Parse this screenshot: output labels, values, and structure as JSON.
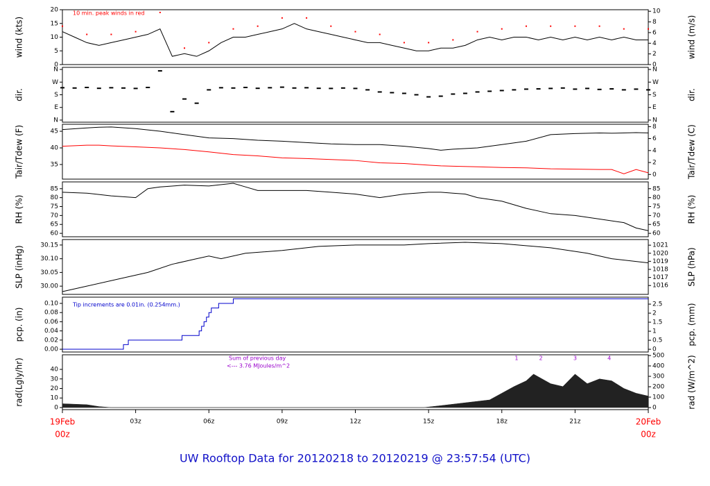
{
  "title": "UW Rooftop Data for 20120218  to  20120219 @ 23:57:54  (UTC)",
  "chart_data": [
    {
      "type": "line",
      "ylabel": "wind (kts)",
      "y2label": "wind (m/s)",
      "annotation": "10 min. peak winds in red",
      "xlim": [
        0,
        24
      ],
      "ylim": [
        0,
        20
      ],
      "yticks": [
        0,
        5,
        10,
        15,
        20
      ],
      "y2lim": [
        0,
        10.29
      ],
      "y2ticks": [
        0,
        2,
        4,
        6,
        8,
        10
      ],
      "x": [
        0,
        0.5,
        1,
        1.5,
        2,
        2.5,
        3,
        3.5,
        4,
        4.5,
        5,
        5.5,
        6,
        6.5,
        7,
        7.5,
        8,
        8.5,
        9,
        9.5,
        10,
        10.5,
        11,
        11.5,
        12,
        12.5,
        13,
        13.5,
        14,
        14.5,
        15,
        15.5,
        16,
        16.5,
        17,
        17.5,
        18,
        18.5,
        19,
        19.5,
        20,
        20.5,
        21,
        21.5,
        22,
        22.5,
        23,
        23.5,
        24
      ],
      "series": [
        {
          "color": "#000000",
          "values": [
            12,
            10,
            8,
            7,
            8,
            9,
            10,
            11,
            13,
            3,
            4,
            3,
            5,
            8,
            10,
            10,
            11,
            12,
            13,
            15,
            13,
            12,
            11,
            10,
            9,
            8,
            8,
            7,
            6,
            5,
            5,
            6,
            6,
            7,
            9,
            10,
            9,
            10,
            10,
            9,
            10,
            9,
            10,
            9,
            10,
            9,
            10,
            9,
            9
          ]
        },
        {
          "color": "#ff0000",
          "marker": "dot",
          "x": [
            0,
            1,
            2,
            3,
            4,
            5,
            6,
            7,
            8,
            9,
            10,
            11,
            12,
            13,
            14,
            15,
            16,
            17,
            18,
            19,
            20,
            21,
            22,
            23,
            24
          ],
          "values": [
            14,
            11,
            11,
            12,
            19,
            6,
            8,
            13,
            14,
            17,
            17,
            14,
            12,
            11,
            8,
            8,
            9,
            12,
            13,
            14,
            14,
            14,
            14,
            13,
            13
          ]
        }
      ]
    },
    {
      "type": "scatter",
      "ylabel": "dir.",
      "y2label": "dir.",
      "xlim": [
        0,
        24
      ],
      "ylim": [
        -15,
        375
      ],
      "yticks": [
        {
          "value": 0,
          "label": "N"
        },
        {
          "value": 90,
          "label": "E"
        },
        {
          "value": 180,
          "label": "S"
        },
        {
          "value": 270,
          "label": "W"
        },
        {
          "value": 360,
          "label": "N"
        }
      ],
      "x": [
        0,
        0.5,
        1,
        1.5,
        2,
        2.5,
        3,
        3.5,
        4,
        4.5,
        5,
        5.5,
        6,
        6.5,
        7,
        7.5,
        8,
        8.5,
        9,
        9.5,
        10,
        10.5,
        11,
        11.5,
        12,
        12.5,
        13,
        13.5,
        14,
        14.5,
        15,
        15.5,
        16,
        16.5,
        17,
        17.5,
        18,
        18.5,
        19,
        19.5,
        20,
        20.5,
        21,
        21.5,
        22,
        22.5,
        23,
        23.5,
        24
      ],
      "series": [
        {
          "color": "#000000",
          "values": [
            230,
            228,
            232,
            226,
            230,
            228,
            225,
            232,
            350,
            60,
            150,
            120,
            215,
            230,
            228,
            232,
            226,
            230,
            234,
            228,
            230,
            226,
            225,
            228,
            225,
            215,
            200,
            195,
            190,
            180,
            165,
            170,
            185,
            190,
            200,
            205,
            210,
            215,
            220,
            222,
            225,
            228,
            220,
            225,
            218,
            222,
            215,
            220,
            215
          ]
        }
      ]
    },
    {
      "type": "line",
      "ylabel": "Tair/Tdew (F)",
      "y2label": "Tair/Tdew (C)",
      "xlim": [
        0,
        24
      ],
      "ylim": [
        30.6,
        47.1
      ],
      "yticks": [
        35,
        40,
        45
      ],
      "y2lim": [
        -0.78,
        8.39
      ],
      "y2ticks": [
        0,
        2,
        4,
        6,
        8
      ],
      "x": [
        0,
        1,
        1.5,
        2,
        3,
        4,
        5,
        6,
        7,
        8,
        9,
        10,
        11,
        12,
        13,
        14,
        15,
        15.5,
        16,
        17,
        18,
        19,
        20,
        21,
        22,
        22.5,
        23,
        23.5,
        24
      ],
      "series": [
        {
          "color": "#000000",
          "values": [
            45.5,
            46,
            46.2,
            46.3,
            45.8,
            45,
            44,
            43,
            42.8,
            42.3,
            42,
            41.6,
            41.2,
            41,
            41,
            40.5,
            39.8,
            39.3,
            39.6,
            40,
            41,
            42,
            44,
            44.3,
            44.5,
            44.4,
            44.5,
            44.6,
            44.5
          ]
        },
        {
          "color": "#ff0000",
          "values": [
            40.5,
            40.8,
            40.8,
            40.6,
            40.3,
            40,
            39.5,
            38.8,
            38,
            37.6,
            37,
            36.8,
            36.5,
            36.2,
            35.5,
            35.3,
            34.8,
            34.6,
            34.5,
            34.3,
            34.1,
            34,
            33.7,
            33.6,
            33.5,
            33.5,
            32.2,
            33.5,
            32.5
          ]
        }
      ]
    },
    {
      "type": "line",
      "ylabel": "RH (%)",
      "y2label": "RH (%)",
      "xlim": [
        0,
        24
      ],
      "ylim": [
        58.1,
        88.8
      ],
      "yticks": [
        60,
        65,
        70,
        75,
        80,
        85
      ],
      "x": [
        0,
        1,
        2,
        3,
        3.5,
        4,
        5,
        6,
        7,
        7.5,
        8,
        9,
        10,
        11,
        12,
        13,
        14,
        15,
        15.5,
        16,
        16.5,
        17,
        18,
        19,
        20,
        21,
        22,
        23,
        23.5,
        24
      ],
      "series": [
        {
          "color": "#000000",
          "values": [
            83,
            82.5,
            81,
            80,
            85,
            86,
            87,
            86.5,
            88,
            86,
            84,
            84,
            84,
            83,
            82,
            80,
            82,
            83,
            83,
            82.5,
            82,
            80,
            78,
            74,
            71,
            70,
            68,
            66,
            63,
            61.5
          ]
        }
      ]
    },
    {
      "type": "line",
      "ylabel": "SLP (inHg)",
      "y2label": "SLP (hPa)",
      "xlim": [
        0,
        24
      ],
      "ylim": [
        29.97,
        30.17
      ],
      "yticks": [
        {
          "value": 30,
          "label": "30.00"
        },
        {
          "value": 30.05,
          "label": "30.05"
        },
        {
          "value": 30.1,
          "label": "30.10"
        },
        {
          "value": 30.15,
          "label": "30.15"
        }
      ],
      "y2lim": [
        1014.9,
        1021.7
      ],
      "y2ticks": [
        1016,
        1017,
        1018,
        1019,
        1020,
        1021
      ],
      "x": [
        0,
        1,
        2.5,
        3.5,
        4.5,
        5.5,
        6,
        6.5,
        7.5,
        9,
        10.5,
        12,
        14,
        15,
        16.5,
        18,
        20,
        21.5,
        22.5,
        24
      ],
      "series": [
        {
          "color": "#000000",
          "values": [
            29.98,
            30,
            30.03,
            30.05,
            30.08,
            30.1,
            30.11,
            30.1,
            30.12,
            30.13,
            30.145,
            30.15,
            30.15,
            30.155,
            30.16,
            30.155,
            30.14,
            30.12,
            30.1,
            30.085
          ]
        }
      ]
    },
    {
      "type": "step",
      "ylabel": "pcp. (in)",
      "y2label": "pcp. (mm)",
      "annotation": "Tip increments are 0.01in. (0.254mm.)",
      "xlim": [
        0,
        24
      ],
      "ylim": [
        -0.006,
        0.1136
      ],
      "yticks": [
        {
          "value": 0,
          "label": "0.00"
        },
        {
          "value": 0.02,
          "label": "0.02"
        },
        {
          "value": 0.04,
          "label": "0.04"
        },
        {
          "value": 0.06,
          "label": "0.06"
        },
        {
          "value": 0.08,
          "label": "0.08"
        },
        {
          "value": 0.1,
          "label": "0.10"
        }
      ],
      "y2lim": [
        -0.15,
        2.886
      ],
      "y2ticks": [
        0,
        0.5,
        1,
        1.5,
        2,
        2.5
      ],
      "x": [
        0,
        2.5,
        2.7,
        4.9,
        5.6,
        5.7,
        5.8,
        5.9,
        6.0,
        6.1,
        6.4,
        7.0,
        24
      ],
      "series": [
        {
          "color": "#0000cc",
          "values": [
            0,
            0.01,
            0.02,
            0.03,
            0.04,
            0.05,
            0.06,
            0.07,
            0.08,
            0.09,
            0.1,
            0.11,
            0.11
          ]
        }
      ]
    },
    {
      "type": "area",
      "ylabel": "rad(Lgly/hr)",
      "y2label": "rad (W/m^2)",
      "annotations": [
        "Sum of previous day",
        "<--- 3.76 MJoules/m^2"
      ],
      "peak_labels": [
        "1",
        "2",
        "3",
        "4"
      ],
      "xlim": [
        0,
        24
      ],
      "ylim": [
        -2.2,
        55.3
      ],
      "yticks": [
        0,
        10,
        20,
        30,
        40
      ],
      "y2lim": [
        -20,
        507
      ],
      "y2ticks": [
        0,
        100,
        200,
        300,
        400,
        500
      ],
      "xticks": [
        {
          "value": 0,
          "label": [
            "19Feb",
            "00z"
          ],
          "color": "#ff0000"
        },
        {
          "value": 3,
          "label": "03z"
        },
        {
          "value": 6,
          "label": "06z"
        },
        {
          "value": 9,
          "label": "09z"
        },
        {
          "value": 12,
          "label": "12z"
        },
        {
          "value": 15,
          "label": "15z"
        },
        {
          "value": 18,
          "label": "18z"
        },
        {
          "value": 21,
          "label": "21z"
        },
        {
          "value": 24,
          "label": [
            "20Feb",
            "00z"
          ],
          "color": "#ff0000"
        }
      ],
      "x": [
        0,
        1,
        1.5,
        2,
        14.8,
        15.5,
        16.5,
        17.5,
        18,
        18.5,
        19,
        19.3,
        20,
        20.5,
        21,
        21.5,
        22,
        22.5,
        23,
        23.5,
        24
      ],
      "series": [
        {
          "color": "#222222",
          "values": [
            4,
            3,
            1,
            0,
            0,
            2,
            5,
            8,
            15,
            22,
            28,
            35,
            25,
            22,
            35,
            25,
            30,
            28,
            20,
            15,
            12
          ]
        }
      ]
    }
  ]
}
